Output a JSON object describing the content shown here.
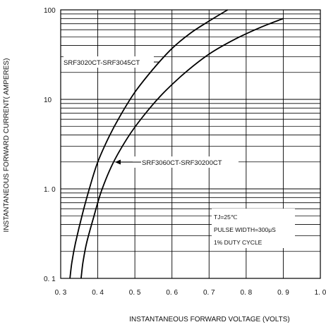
{
  "chart_data": {
    "type": "line",
    "title": "",
    "xlabel": "INSTANTANEOUS FORWARD VOLTAGE (VOLTS)",
    "ylabel": "INSTANTANEOUS FORWARD CURRENT( AMPERES)",
    "xlim": [
      0.3,
      1.0
    ],
    "ylim": [
      0.1,
      100
    ],
    "yscale": "log",
    "grid": true,
    "x_ticks": [
      {
        "v": 0.3,
        "label": "0. 3"
      },
      {
        "v": 0.4,
        "label": "0. 4"
      },
      {
        "v": 0.5,
        "label": "0. 5"
      },
      {
        "v": 0.6,
        "label": "0. 6"
      },
      {
        "v": 0.7,
        "label": "0. 7"
      },
      {
        "v": 0.8,
        "label": "0. 8"
      },
      {
        "v": 0.9,
        "label": "0. 9"
      },
      {
        "v": 1.0,
        "label": "1. 0"
      }
    ],
    "y_ticks": [
      {
        "v": 100,
        "label": "100"
      },
      {
        "v": 10,
        "label": "10"
      },
      {
        "v": 1,
        "label": "1. 0"
      },
      {
        "v": 0.1,
        "label": "0. 1"
      }
    ],
    "series": [
      {
        "name": "SRF3020CT-SRF3045CT",
        "x": [
          0.325,
          0.33,
          0.34,
          0.36,
          0.38,
          0.4,
          0.43,
          0.46,
          0.5,
          0.55,
          0.6,
          0.65,
          0.7,
          0.75
        ],
        "y": [
          0.1,
          0.15,
          0.25,
          0.55,
          1.1,
          2.0,
          3.8,
          6.5,
          12,
          22,
          37,
          55,
          75,
          100
        ]
      },
      {
        "name": "SRF3060CT-SRF30200CT",
        "x": [
          0.355,
          0.36,
          0.37,
          0.39,
          0.41,
          0.44,
          0.48,
          0.52,
          0.57,
          0.63,
          0.7,
          0.77,
          0.84,
          0.9
        ],
        "y": [
          0.1,
          0.15,
          0.25,
          0.5,
          0.95,
          1.9,
          3.7,
          6.3,
          11,
          19,
          32,
          47,
          64,
          80
        ]
      }
    ],
    "annotations": [
      {
        "text": "SRF3020CT-SRF3045CT",
        "points_to_series": 0
      },
      {
        "text": "SRF3060CT-SRF30200CT",
        "points_to_series": 1
      }
    ],
    "conditions": [
      "TJ=25℃",
      "PULSE WIDTH=300μS",
      "1% DUTY CYCLE"
    ]
  }
}
